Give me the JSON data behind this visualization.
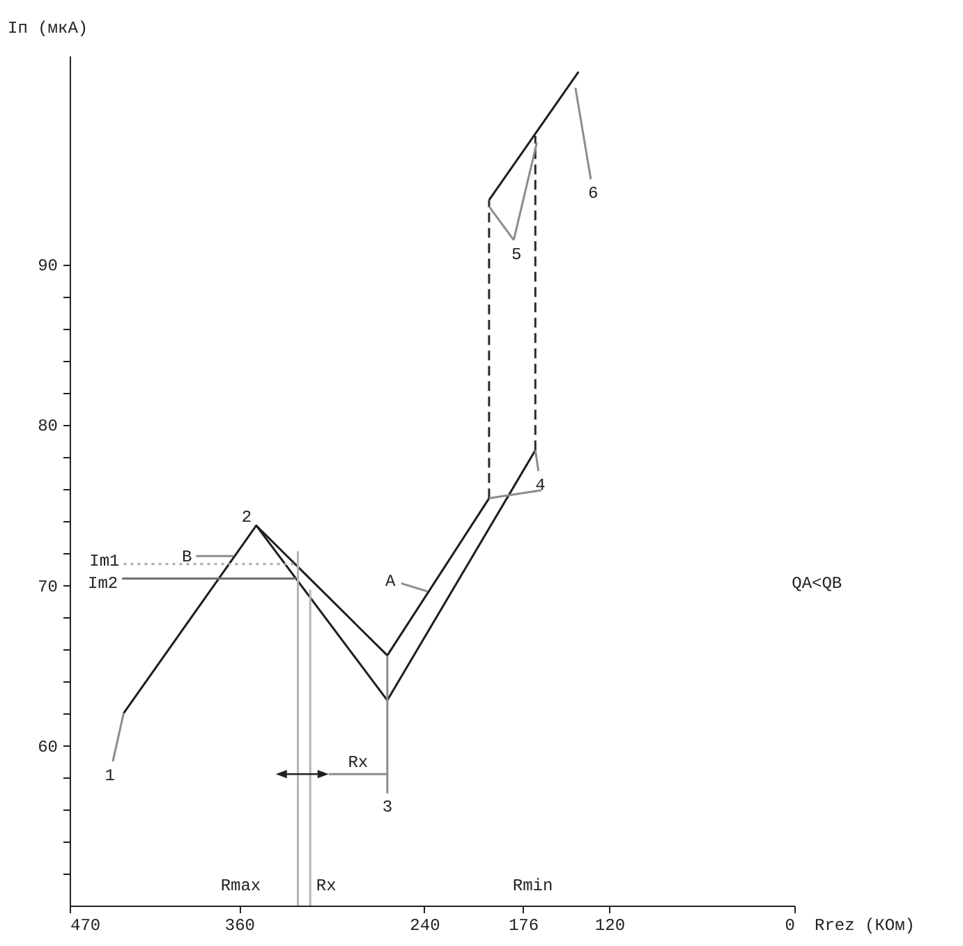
{
  "chart_data": {
    "type": "line",
    "xlabel": "Rrez (КОм)",
    "ylabel": "Iп (мкА)",
    "xlim": [
      470,
      0
    ],
    "ylim": [
      50,
      103
    ],
    "xticks": [
      470,
      360,
      240,
      176,
      120,
      0
    ],
    "yticks": [
      {
        "value": 52,
        "label": null
      },
      {
        "value": 54,
        "label": null
      },
      {
        "value": 56,
        "label": null
      },
      {
        "value": 58,
        "label": null
      },
      60,
      {
        "value": 62,
        "label": null
      },
      {
        "value": 64,
        "label": null
      },
      {
        "value": 66,
        "label": null
      },
      {
        "value": 68,
        "label": null
      },
      70,
      {
        "value": 72,
        "label": null
      },
      {
        "value": 74,
        "label": null
      },
      {
        "value": 76,
        "label": null
      },
      {
        "value": 78,
        "label": null
      },
      80,
      {
        "value": 82,
        "label": null
      },
      {
        "value": 84,
        "label": null
      },
      {
        "value": 86,
        "label": null
      },
      {
        "value": 88,
        "label": null
      },
      90
    ],
    "series": [
      {
        "x": [
          435,
          349,
          264,
          168
        ],
        "values": [
          62,
          73.7,
          62.8,
          78.4
        ],
        "color": "#1e1e1e",
        "line_style": "solid"
      },
      {
        "x": [
          349,
          264,
          198
        ],
        "values": [
          73.7,
          65.6,
          75.4
        ],
        "color": "#1e1e1e",
        "line_style": "solid"
      },
      {
        "x": [
          198,
          140
        ],
        "values": [
          94,
          102
        ],
        "color": "#1e1e1e",
        "line_style": "solid"
      },
      {
        "x": [
          198,
          198
        ],
        "values": [
          75.4,
          94
        ],
        "color": "#2a2a2a",
        "line_style": "dashed"
      },
      {
        "x": [
          168,
          168
        ],
        "values": [
          78.4,
          98
        ],
        "color": "#2a2a2a",
        "line_style": "dashed"
      },
      {
        "x": [
          435,
          322
        ],
        "values": [
          71.3,
          71.3
        ],
        "color": "#a8a8a8",
        "line_style": "dotted"
      },
      {
        "x": [
          436,
          323
        ],
        "values": [
          70.4,
          70.4
        ],
        "color": "#6e6e6e",
        "line_style": "solid"
      },
      {
        "x": [
          322,
          322
        ],
        "values": [
          72.1,
          50
        ],
        "color": "#b4b4b4",
        "line_style": "solid"
      },
      {
        "x": [
          314,
          314
        ],
        "values": [
          69.7,
          50
        ],
        "color": "#b4b4b4",
        "line_style": "solid"
      },
      {
        "x": [
          264,
          264
        ],
        "values": [
          65.6,
          57
        ],
        "color": "#8c8c8c",
        "line_style": "solid"
      },
      {
        "x": [
          435,
          442
        ],
        "values": [
          62,
          59
        ],
        "color": "#8c8c8c",
        "line_style": "solid"
      },
      {
        "x": [
          238,
          255
        ],
        "values": [
          69.6,
          70.1
        ],
        "color": "#8c8c8c",
        "line_style": "solid"
      },
      {
        "x": [
          364,
          388
        ],
        "values": [
          71.8,
          71.8
        ],
        "color": "#8c8c8c",
        "line_style": "solid"
      },
      {
        "x": [
          198,
          164
        ],
        "values": [
          75.4,
          75.9
        ],
        "color": "#8c8c8c",
        "line_style": "solid"
      },
      {
        "x": [
          168,
          166
        ],
        "values": [
          78.4,
          77.1
        ],
        "color": "#8c8c8c",
        "line_style": "solid"
      },
      {
        "x": [
          198,
          182
        ],
        "values": [
          93.6,
          91.5
        ],
        "color": "#8c8c8c",
        "line_style": "solid"
      },
      {
        "x": [
          167,
          182
        ],
        "values": [
          97.6,
          91.5
        ],
        "color": "#8c8c8c",
        "line_style": "solid"
      },
      {
        "x": [
          142,
          132
        ],
        "values": [
          101,
          95.3
        ],
        "color": "#8c8c8c",
        "line_style": "solid"
      },
      {
        "x": [
          302,
          264
        ],
        "values": [
          58.2,
          58.2
        ],
        "color": "#8c8c8c",
        "line_style": "solid"
      }
    ],
    "annotations": [
      {
        "text": "1",
        "x": 442,
        "y": 59
      },
      {
        "text": "2",
        "x": 349,
        "y": 73.7
      },
      {
        "text": "3",
        "x": 264,
        "y": 57
      },
      {
        "text": "4",
        "x": 166,
        "y": 77.1
      },
      {
        "text": "5",
        "x": 182,
        "y": 91.5
      },
      {
        "text": "6",
        "x": 132,
        "y": 95.3
      },
      {
        "text": "A",
        "x": 255,
        "y": 70.1
      },
      {
        "text": "B",
        "x": 388,
        "y": 71.8
      },
      {
        "text": "Im1",
        "x": 435,
        "y": 71.3
      },
      {
        "text": "Im2",
        "x": 436,
        "y": 70.4
      },
      {
        "text": "Rx",
        "x": 283,
        "y": 58.2
      },
      "Rmax",
      "Rx",
      "Rmin",
      "QA<QB"
    ]
  }
}
